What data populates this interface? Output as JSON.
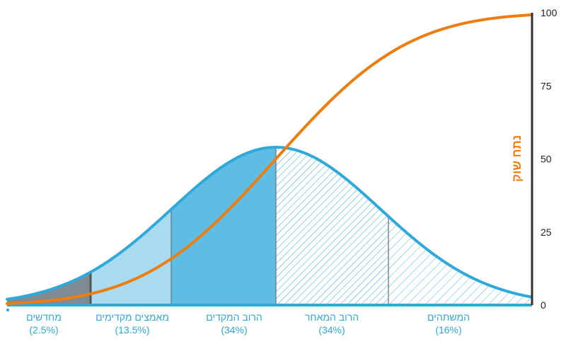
{
  "chart_data": {
    "type": "area",
    "title": "",
    "xlabel": "",
    "ylabel": "נתח שוק",
    "ylim": [
      0,
      100
    ],
    "yticks": [
      0,
      25,
      50,
      75,
      100
    ],
    "grid": false,
    "legend": "none",
    "segments": [
      {
        "name": "מחדשים",
        "pct_label": "(2.5%)",
        "share": 2.5,
        "style": "solid-dark"
      },
      {
        "name": "מאמצים מקדימים",
        "pct_label": "(13.5%)",
        "share": 13.5,
        "style": "solid-light"
      },
      {
        "name": "הרוב המקדים",
        "pct_label": "(34%)",
        "share": 34,
        "style": "solid-medium"
      },
      {
        "name": "הרוב המאחר",
        "pct_label": "(34%)",
        "share": 34,
        "style": "hatched-dense"
      },
      {
        "name": "המשתהים",
        "pct_label": "(16%)",
        "share": 16,
        "style": "hatched-sparse"
      }
    ],
    "series": [
      {
        "kind": "bell",
        "peak_share_of_axis": 54
      },
      {
        "kind": "cumulative",
        "values": [
          0,
          2.5,
          16,
          50,
          84,
          100
        ]
      }
    ],
    "colors": {
      "bell_line": "#2ea9d9",
      "cumulative_line": "#ee7d10",
      "fill_innovators": "#7f8a93",
      "fill_early_adopters": "#a8dbef",
      "fill_early_majority": "#5fbde3",
      "hatch": "#3aaee0",
      "label": "#2ea9d9",
      "ylabel": "#ee7d10",
      "axis": "#333333"
    }
  }
}
